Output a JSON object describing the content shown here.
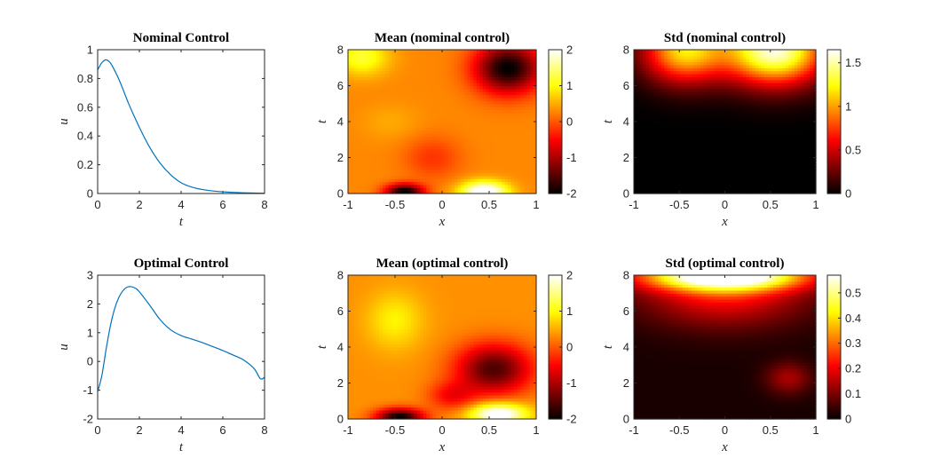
{
  "colors": {
    "line": "#0072BD",
    "axis": "#262626",
    "colormap": "hot"
  },
  "chart_data": [
    {
      "type": "line",
      "title": "Nominal Control",
      "xlabel": "t",
      "ylabel": "u",
      "xlim": [
        0,
        8
      ],
      "ylim": [
        0,
        1
      ],
      "xticks": [
        "0",
        "2",
        "4",
        "6",
        "8"
      ],
      "yticks": [
        "0",
        "0.2",
        "0.4",
        "0.6",
        "0.8",
        "1"
      ],
      "series": [
        {
          "x": [
            0,
            0.2,
            0.4,
            0.6,
            0.8,
            1.0,
            1.2,
            1.5,
            2.0,
            2.5,
            3.0,
            3.5,
            4.0,
            4.5,
            5.0,
            5.5,
            6.0,
            6.5,
            7.0,
            7.5,
            8.0
          ],
          "y": [
            0.86,
            0.91,
            0.93,
            0.91,
            0.86,
            0.8,
            0.73,
            0.62,
            0.46,
            0.32,
            0.21,
            0.13,
            0.075,
            0.045,
            0.028,
            0.018,
            0.012,
            0.008,
            0.005,
            0.003,
            0.002
          ]
        }
      ]
    },
    {
      "type": "heatmap",
      "title": "Mean (nominal control)",
      "xlabel": "x",
      "ylabel": "t",
      "xlim": [
        -1,
        1
      ],
      "ylim": [
        0,
        8
      ],
      "xticks": [
        "-1",
        "-0.5",
        "0",
        "0.5",
        "1"
      ],
      "yticks": [
        "0",
        "2",
        "4",
        "6",
        "8"
      ],
      "colorbar": {
        "range": [
          -2,
          2
        ],
        "ticks": [
          "-2",
          "-1",
          "0",
          "1",
          "2"
        ]
      },
      "baseline": 0.3,
      "features": [
        {
          "x": 0.7,
          "t": 7.0,
          "amp": -2.3,
          "sx": 0.35,
          "st": 1.4
        },
        {
          "x": -0.85,
          "t": 7.6,
          "amp": 0.9,
          "sx": 0.28,
          "st": 1.0
        },
        {
          "x": 0.45,
          "t": 0.1,
          "amp": 2.1,
          "sx": 0.25,
          "st": 0.6
        },
        {
          "x": -0.4,
          "t": 0.1,
          "amp": -2.4,
          "sx": 0.2,
          "st": 0.45
        },
        {
          "x": -0.1,
          "t": 2.0,
          "amp": -0.5,
          "sx": 0.3,
          "st": 1.2
        },
        {
          "x": -0.55,
          "t": 4.0,
          "amp": 0.2,
          "sx": 0.3,
          "st": 1.0
        }
      ]
    },
    {
      "type": "heatmap",
      "title": "Std (nominal control)",
      "xlabel": "x",
      "ylabel": "t",
      "xlim": [
        -1,
        1
      ],
      "ylim": [
        0,
        8
      ],
      "xticks": [
        "-1",
        "-0.5",
        "0",
        "0.5",
        "1"
      ],
      "yticks": [
        "0",
        "2",
        "4",
        "6",
        "8"
      ],
      "colorbar": {
        "range": [
          0,
          1.65
        ],
        "ticks": [
          "0",
          "0.5",
          "1",
          "1.5"
        ]
      },
      "baseline": 0,
      "features": [
        {
          "x": 0.55,
          "t": 8.0,
          "amp": 1.6,
          "sx": 0.55,
          "st": 1.9
        },
        {
          "x": -0.45,
          "t": 8.0,
          "amp": 1.15,
          "sx": 0.45,
          "st": 1.8
        }
      ]
    },
    {
      "type": "line",
      "title": "Optimal Control",
      "xlabel": "t",
      "ylabel": "u",
      "xlim": [
        0,
        8
      ],
      "ylim": [
        -2,
        3
      ],
      "xticks": [
        "0",
        "2",
        "4",
        "6",
        "8"
      ],
      "yticks": [
        "-2",
        "-1",
        "0",
        "1",
        "2",
        "3"
      ],
      "series": [
        {
          "x": [
            0,
            0.2,
            0.4,
            0.6,
            0.8,
            1.0,
            1.2,
            1.4,
            1.6,
            1.8,
            2.0,
            2.5,
            3.0,
            3.5,
            4.0,
            4.5,
            5.0,
            5.5,
            6.0,
            6.5,
            7.0,
            7.5,
            7.8,
            8.0
          ],
          "y": [
            -1.05,
            -0.5,
            0.4,
            1.2,
            1.8,
            2.2,
            2.45,
            2.58,
            2.6,
            2.55,
            2.42,
            1.95,
            1.45,
            1.1,
            0.9,
            0.78,
            0.66,
            0.52,
            0.38,
            0.22,
            0.05,
            -0.25,
            -0.6,
            -0.55
          ]
        }
      ]
    },
    {
      "type": "heatmap",
      "title": "Mean (optimal control)",
      "xlabel": "x",
      "ylabel": "t",
      "xlim": [
        -1,
        1
      ],
      "ylim": [
        0,
        8
      ],
      "xticks": [
        "-1",
        "-0.5",
        "0",
        "0.5",
        "1"
      ],
      "yticks": [
        "0",
        "2",
        "4",
        "6",
        "8"
      ],
      "colorbar": {
        "range": [
          -2,
          2
        ],
        "ticks": [
          "-2",
          "-1",
          "0",
          "1",
          "2"
        ]
      },
      "baseline": 0.35,
      "features": [
        {
          "x": -0.5,
          "t": 5.5,
          "amp": 0.6,
          "sx": 0.3,
          "st": 1.6
        },
        {
          "x": 0.55,
          "t": 2.8,
          "amp": -1.9,
          "sx": 0.4,
          "st": 1.4
        },
        {
          "x": 0.6,
          "t": 0.3,
          "amp": 2.0,
          "sx": 0.3,
          "st": 0.6
        },
        {
          "x": -0.45,
          "t": 0.1,
          "amp": -2.4,
          "sx": 0.25,
          "st": 0.5
        },
        {
          "x": 0.1,
          "t": 1.3,
          "amp": -0.8,
          "sx": 0.25,
          "st": 0.8
        }
      ]
    },
    {
      "type": "heatmap",
      "title": "Std (optimal control)",
      "xlabel": "x",
      "ylabel": "t",
      "xlim": [
        -1,
        1
      ],
      "ylim": [
        0,
        8
      ],
      "xticks": [
        "-1",
        "-0.5",
        "0",
        "0.5",
        "1"
      ],
      "yticks": [
        "0",
        "2",
        "4",
        "6",
        "8"
      ],
      "colorbar": {
        "range": [
          0,
          0.57
        ],
        "ticks": [
          "0",
          "0.1",
          "0.2",
          "0.3",
          "0.4",
          "0.5"
        ]
      },
      "baseline": 0.02,
      "features": [
        {
          "x": 0.0,
          "t": 8.0,
          "amp": 0.56,
          "sx": 0.9,
          "st": 0.8
        },
        {
          "x": 0.0,
          "t": 7.0,
          "amp": 0.2,
          "sx": 0.9,
          "st": 1.8
        },
        {
          "x": 0.7,
          "t": 2.3,
          "amp": 0.12,
          "sx": 0.25,
          "st": 0.9
        }
      ]
    }
  ]
}
